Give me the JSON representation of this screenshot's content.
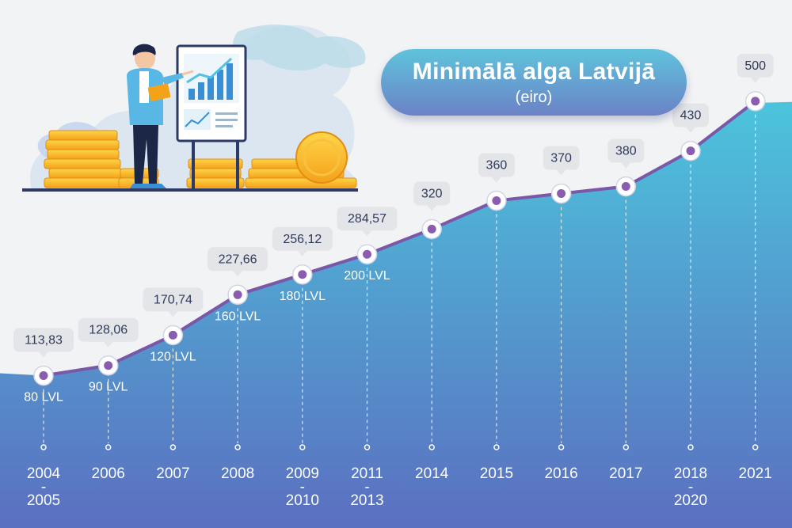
{
  "title": "Minimālā alga Latvijā",
  "subtitle": "(eiro)",
  "chart_data": {
    "type": "area",
    "title": "Minimālā alga Latvijā",
    "subtitle": "(eiro)",
    "x_labels": [
      [
        "2004",
        "-",
        "2005"
      ],
      [
        "2006"
      ],
      [
        "2007"
      ],
      [
        "2008"
      ],
      [
        "2009",
        "-",
        "2010"
      ],
      [
        "2011",
        "-",
        "2013"
      ],
      [
        "2014"
      ],
      [
        "2015"
      ],
      [
        "2016"
      ],
      [
        "2017"
      ],
      [
        "2018",
        "-",
        "2020"
      ],
      [
        "2021"
      ]
    ],
    "values": [
      113.83,
      128.06,
      170.74,
      227.66,
      256.12,
      284.57,
      320,
      360,
      370,
      380,
      430,
      500
    ],
    "value_labels": [
      "113,83",
      "128,06",
      "170,74",
      "227,66",
      "256,12",
      "284,57",
      "320",
      "360",
      "370",
      "380",
      "430",
      "500"
    ],
    "lvl_labels": [
      "80 LVL",
      "90 LVL",
      "120 LVL",
      "160 LVL",
      "180 LVL",
      "200 LVL",
      null,
      null,
      null,
      null,
      null,
      null
    ],
    "grid": false,
    "legend": "none"
  },
  "colors": {
    "background": "#f2f3f5",
    "area_top": "#4cc4dc",
    "area_bottom": "#5b6fc0",
    "line": "#7b57a8",
    "marker_fill": "#8a5cb0",
    "label_box": "#e4e5e9",
    "value_text": "#2e3a59",
    "axis_text": "#ffffff"
  },
  "illustration": {
    "icon": "presenter-with-chart-and-coins"
  }
}
